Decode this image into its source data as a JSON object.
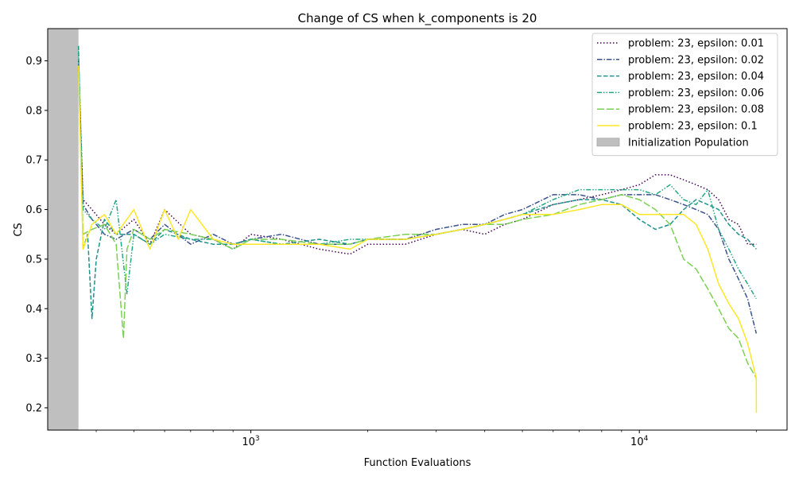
{
  "chart_data": {
    "type": "line",
    "title": "Change of CS when k_components is 20",
    "xlabel": "Function Evaluations",
    "ylabel": "CS",
    "x_scale": "log",
    "xlim": [
      300,
      24000
    ],
    "ylim": [
      0.155,
      0.965
    ],
    "x_tick_labels": [
      {
        "value": 1000,
        "base": "10",
        "exp": "3"
      },
      {
        "value": 10000,
        "base": "10",
        "exp": "4"
      }
    ],
    "y_ticks": [
      0.2,
      0.3,
      0.4,
      0.5,
      0.6,
      0.7,
      0.8,
      0.9
    ],
    "y_tick_labels": [
      "0.2",
      "0.3",
      "0.4",
      "0.5",
      "0.6",
      "0.7",
      "0.8",
      "0.9"
    ],
    "shaded_region": {
      "x": [
        300,
        360
      ],
      "label": "Initialization Population",
      "color": "#bfbfbf"
    },
    "legend_position": "upper right",
    "series": [
      {
        "name": "problem: 23, epsilon: 0.01",
        "color": "#440154",
        "dash": "dotted",
        "x": [
          360,
          370,
          390,
          420,
          450,
          500,
          550,
          600,
          700,
          800,
          900,
          1000,
          1200,
          1500,
          1800,
          2000,
          2500,
          3000,
          3500,
          4000,
          4500,
          5000,
          6000,
          7000,
          8000,
          9000,
          10000,
          11000,
          12000,
          13000,
          14000,
          15000,
          16000,
          17000,
          18000,
          19000,
          20000
        ],
        "y": [
          0.9,
          0.62,
          0.6,
          0.57,
          0.55,
          0.58,
          0.53,
          0.6,
          0.55,
          0.54,
          0.52,
          0.55,
          0.54,
          0.52,
          0.51,
          0.53,
          0.53,
          0.55,
          0.56,
          0.55,
          0.57,
          0.58,
          0.61,
          0.62,
          0.63,
          0.64,
          0.65,
          0.67,
          0.67,
          0.66,
          0.65,
          0.64,
          0.62,
          0.58,
          0.57,
          0.53,
          0.53
        ]
      },
      {
        "name": "problem: 23, epsilon: 0.02",
        "color": "#3b528b",
        "dash": "dashdot",
        "x": [
          360,
          370,
          390,
          420,
          450,
          500,
          550,
          600,
          700,
          800,
          900,
          1000,
          1200,
          1500,
          1800,
          2000,
          2500,
          3000,
          3500,
          4000,
          4500,
          5000,
          6000,
          7000,
          8000,
          9000,
          10000,
          11000,
          12000,
          13000,
          14000,
          15000,
          16000,
          17000,
          18000,
          19000,
          20000
        ],
        "y": [
          0.89,
          0.61,
          0.58,
          0.55,
          0.54,
          0.56,
          0.54,
          0.57,
          0.53,
          0.55,
          0.53,
          0.54,
          0.55,
          0.53,
          0.53,
          0.54,
          0.54,
          0.56,
          0.57,
          0.57,
          0.59,
          0.6,
          0.63,
          0.63,
          0.62,
          0.63,
          0.63,
          0.63,
          0.62,
          0.61,
          0.6,
          0.59,
          0.56,
          0.5,
          0.46,
          0.42,
          0.35
        ]
      },
      {
        "name": "problem: 23, epsilon: 0.04",
        "color": "#21918c",
        "dash": "dashed",
        "x": [
          360,
          370,
          380,
          390,
          400,
          420,
          450,
          500,
          550,
          600,
          700,
          800,
          900,
          1000,
          1200,
          1500,
          1800,
          2000,
          2500,
          3000,
          3500,
          4000,
          4500,
          5000,
          6000,
          7000,
          8000,
          9000,
          10000,
          11000,
          12000,
          13000,
          14000,
          15000,
          16000,
          17000,
          18000,
          19000,
          20000
        ],
        "y": [
          0.93,
          0.52,
          0.55,
          0.38,
          0.5,
          0.58,
          0.55,
          0.55,
          0.53,
          0.56,
          0.54,
          0.53,
          0.53,
          0.54,
          0.53,
          0.54,
          0.53,
          0.54,
          0.54,
          0.55,
          0.56,
          0.57,
          0.58,
          0.59,
          0.61,
          0.62,
          0.62,
          0.61,
          0.58,
          0.56,
          0.57,
          0.6,
          0.62,
          0.61,
          0.6,
          0.57,
          0.55,
          0.54,
          0.52
        ]
      },
      {
        "name": "problem: 23, epsilon: 0.06",
        "color": "#22a884",
        "dash": "dashdotdot",
        "x": [
          360,
          370,
          390,
          420,
          450,
          480,
          500,
          550,
          600,
          700,
          800,
          900,
          1000,
          1200,
          1500,
          1800,
          2000,
          2500,
          3000,
          3500,
          4000,
          4500,
          5000,
          6000,
          7000,
          8000,
          9000,
          10000,
          11000,
          12000,
          13000,
          14000,
          15000,
          16000,
          17000,
          18000,
          19000,
          20000
        ],
        "y": [
          0.92,
          0.6,
          0.58,
          0.56,
          0.62,
          0.43,
          0.55,
          0.53,
          0.55,
          0.54,
          0.54,
          0.52,
          0.54,
          0.53,
          0.53,
          0.54,
          0.54,
          0.54,
          0.55,
          0.56,
          0.57,
          0.58,
          0.59,
          0.62,
          0.64,
          0.64,
          0.64,
          0.64,
          0.63,
          0.65,
          0.62,
          0.61,
          0.64,
          0.56,
          0.52,
          0.48,
          0.45,
          0.42
        ]
      },
      {
        "name": "problem: 23, epsilon: 0.08",
        "color": "#7ad151",
        "dash": "longdash",
        "x": [
          360,
          370,
          390,
          420,
          450,
          470,
          480,
          500,
          550,
          600,
          700,
          800,
          900,
          1000,
          1200,
          1500,
          1800,
          2000,
          2500,
          3000,
          3500,
          4000,
          4500,
          5000,
          6000,
          7000,
          8000,
          9000,
          10000,
          11000,
          12000,
          13000,
          14000,
          15000,
          16000,
          17000,
          18000,
          19000,
          20000
        ],
        "y": [
          0.88,
          0.55,
          0.56,
          0.57,
          0.53,
          0.34,
          0.52,
          0.56,
          0.54,
          0.56,
          0.55,
          0.54,
          0.52,
          0.54,
          0.54,
          0.53,
          0.53,
          0.54,
          0.55,
          0.55,
          0.56,
          0.57,
          0.57,
          0.58,
          0.59,
          0.61,
          0.62,
          0.63,
          0.62,
          0.6,
          0.57,
          0.5,
          0.48,
          0.44,
          0.4,
          0.36,
          0.34,
          0.29,
          0.26
        ]
      },
      {
        "name": "problem: 23, epsilon: 0.1",
        "color": "#fde725",
        "dash": "solid",
        "x": [
          360,
          370,
          390,
          420,
          450,
          500,
          550,
          600,
          650,
          700,
          800,
          900,
          1000,
          1200,
          1500,
          1800,
          2000,
          2500,
          3000,
          3500,
          4000,
          4500,
          5000,
          6000,
          7000,
          8000,
          9000,
          10000,
          11000,
          12000,
          13000,
          14000,
          15000,
          16000,
          17000,
          18000,
          19000,
          20000,
          20010
        ],
        "y": [
          0.89,
          0.52,
          0.57,
          0.59,
          0.55,
          0.6,
          0.52,
          0.6,
          0.54,
          0.6,
          0.54,
          0.53,
          0.53,
          0.53,
          0.53,
          0.52,
          0.54,
          0.54,
          0.55,
          0.56,
          0.57,
          0.58,
          0.59,
          0.59,
          0.6,
          0.61,
          0.61,
          0.59,
          0.59,
          0.59,
          0.59,
          0.57,
          0.52,
          0.45,
          0.41,
          0.38,
          0.33,
          0.26,
          0.19
        ]
      }
    ]
  }
}
